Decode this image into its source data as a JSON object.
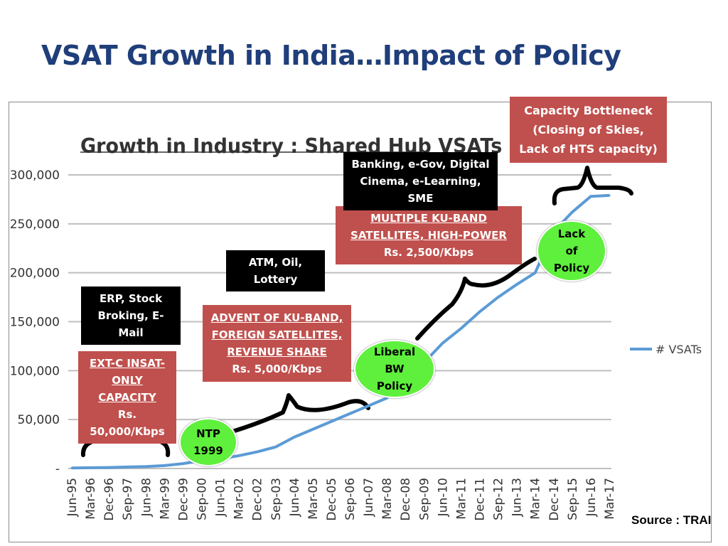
{
  "slide": {
    "title": "VSAT Growth in India…Impact of Policy",
    "source": "Source : TRAI"
  },
  "chart_data": {
    "type": "line",
    "title": "Growth in Industry : Shared Hub VSATs",
    "ylim": [
      0,
      300000
    ],
    "yticks": [
      0,
      50000,
      100000,
      150000,
      200000,
      250000,
      300000
    ],
    "ytick_labels": [
      "-",
      "50,000",
      "100,000",
      "150,000",
      "200,000",
      "250,000",
      "300,000"
    ],
    "grid": true,
    "legend": "right",
    "categories": [
      "Jun-95",
      "Mar-96",
      "Dec-96",
      "Sep-97",
      "Jun-98",
      "Mar-99",
      "Dec-99",
      "Sep-00",
      "Jun-01",
      "Mar-02",
      "Dec-02",
      "Sep-03",
      "Jun-04",
      "Mar-05",
      "Dec-05",
      "Sep-06",
      "Jun-07",
      "Mar-08",
      "Dec-08",
      "Sep-09",
      "Jun-10",
      "Mar-11",
      "Dec-11",
      "Sep-12",
      "Jun-13",
      "Mar-14",
      "Dec-14",
      "Sep-15",
      "Jun-16",
      "Mar-17"
    ],
    "series": [
      {
        "name": "# VSATs",
        "color": "#5b9bd5",
        "values": [
          500,
          800,
          1000,
          1500,
          2000,
          3000,
          5000,
          8000,
          10000,
          13000,
          17000,
          22000,
          32000,
          40000,
          48000,
          56000,
          64000,
          72000,
          88000,
          108000,
          128000,
          143000,
          160000,
          175000,
          188000,
          200000,
          242000,
          262000,
          278000,
          279000
        ]
      }
    ]
  },
  "annotations": {
    "ext_c": {
      "lines": [
        "EXT-C INSAT-",
        "ONLY",
        "CAPACITY",
        "Rs.",
        "50,000/Kbps"
      ]
    },
    "erp": {
      "lines": [
        "ERP, Stock",
        "Broking, E-",
        "Mail"
      ]
    },
    "ku_band": {
      "lines": [
        "ADVENT OF KU-BAND,",
        "FOREIGN SATELLITES,",
        "REVENUE SHARE",
        "Rs. 5,000/Kbps"
      ]
    },
    "atm": {
      "lines": [
        "ATM, Oil,",
        "Lottery"
      ]
    },
    "multi_ku": {
      "lines": [
        "MULTIPLE KU-BAND",
        "SATELLITES, HIGH-POWER",
        "Rs. 2,500/Kbps"
      ]
    },
    "banking": {
      "lines": [
        "Banking, e-Gov, Digital",
        "Cinema, e-Learning,",
        "SME"
      ]
    },
    "capacity": {
      "lines": [
        "Capacity Bottleneck",
        "(Closing of Skies,",
        "Lack of HTS capacity)"
      ]
    },
    "ntp": {
      "lines": [
        "NTP",
        "1999"
      ]
    },
    "liberal": {
      "lines": [
        "Liberal",
        "BW",
        "Policy"
      ]
    },
    "lack": {
      "lines": [
        "Lack",
        "of",
        "Policy"
      ]
    }
  },
  "colors": {
    "title": "#1f3e7a",
    "red_box": "#c0504d",
    "circle": "#5ef03c",
    "line": "#5b9bd5"
  }
}
